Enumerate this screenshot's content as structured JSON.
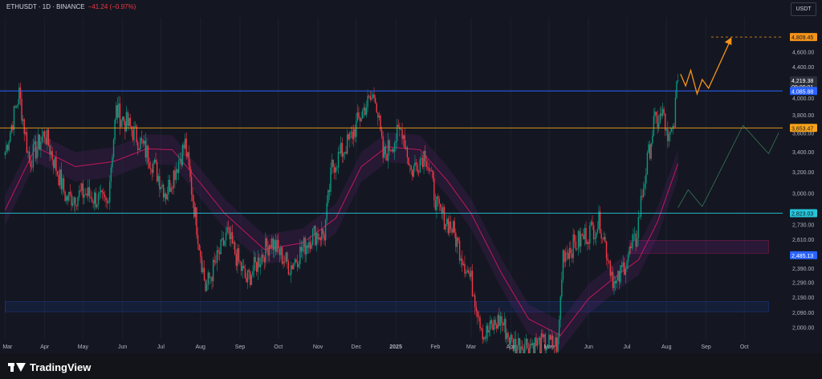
{
  "header": {
    "symbol_line": "ETHUSDT · 1D · BINANCE",
    "change": "−41.24 (−0.97%)",
    "currency_button": "USDT"
  },
  "footer": {
    "brand": "TradingView"
  },
  "colors": {
    "background": "#141721",
    "up": "#089981",
    "down": "#f23645",
    "ema": "#c2185b",
    "resistance_blue": "#2962ff",
    "support_orange": "#f7a21b",
    "cyan_line": "#26c6da",
    "projection_orange": "#f7931a",
    "axis_text": "#b2b5be"
  },
  "chart_data": {
    "type": "candlestick",
    "symbol": "ETHUSDT",
    "timeframe": "1D",
    "exchange": "BINANCE",
    "y_scale": "log",
    "ylim": [
      1930,
      5100
    ],
    "y_ticks": [
      "4,600.00",
      "4,400.00",
      "4,000.00",
      "3,800.00",
      "3,600.00",
      "3,400.00",
      "3,200.00",
      "3,000.00",
      "2,730.00",
      "2,610.00",
      "2,390.00",
      "2,290.00",
      "2,190.00",
      "2,090.00",
      "2,000.00"
    ],
    "x_labels": [
      "Mar",
      "Apr",
      "May",
      "Jun",
      "Jul",
      "Aug",
      "Sep",
      "Oct",
      "Nov",
      "Dec",
      "2025",
      "Feb",
      "Mar",
      "Apr",
      "May",
      "Jun",
      "Jul",
      "Aug",
      "Sep",
      "Oct"
    ],
    "price_path": [
      {
        "date": "2024-03-01",
        "close": 3400
      },
      {
        "date": "2024-03-12",
        "close": 4050
      },
      {
        "date": "2024-03-20",
        "close": 3300
      },
      {
        "date": "2024-04-01",
        "close": 3600
      },
      {
        "date": "2024-04-18",
        "close": 2950
      },
      {
        "date": "2024-05-02",
        "close": 3000
      },
      {
        "date": "2024-05-20",
        "close": 2900
      },
      {
        "date": "2024-05-27",
        "close": 3850
      },
      {
        "date": "2024-06-10",
        "close": 3600
      },
      {
        "date": "2024-06-24",
        "close": 3300
      },
      {
        "date": "2024-07-05",
        "close": 3000
      },
      {
        "date": "2024-07-20",
        "close": 3480
      },
      {
        "date": "2024-08-05",
        "close": 2250
      },
      {
        "date": "2024-08-22",
        "close": 2650
      },
      {
        "date": "2024-09-06",
        "close": 2300
      },
      {
        "date": "2024-09-25",
        "close": 2600
      },
      {
        "date": "2024-10-10",
        "close": 2400
      },
      {
        "date": "2024-10-28",
        "close": 2650
      },
      {
        "date": "2024-11-06",
        "close": 2650
      },
      {
        "date": "2024-11-12",
        "close": 3250
      },
      {
        "date": "2024-11-25",
        "close": 3500
      },
      {
        "date": "2024-12-08",
        "close": 3900
      },
      {
        "date": "2024-12-16",
        "close": 4050
      },
      {
        "date": "2024-12-22",
        "close": 3350
      },
      {
        "date": "2025-01-06",
        "close": 3650
      },
      {
        "date": "2025-01-13",
        "close": 3200
      },
      {
        "date": "2025-01-24",
        "close": 3400
      },
      {
        "date": "2025-02-03",
        "close": 2850
      },
      {
        "date": "2025-02-14",
        "close": 2700
      },
      {
        "date": "2025-03-01",
        "close": 2300
      },
      {
        "date": "2025-03-11",
        "close": 1950
      },
      {
        "date": "2025-03-24",
        "close": 2050
      },
      {
        "date": "2025-04-02",
        "close": 1900
      },
      {
        "date": "2025-05-08",
        "close": 1900
      },
      {
        "date": "2025-05-12",
        "close": 2500
      },
      {
        "date": "2025-05-25",
        "close": 2600
      },
      {
        "date": "2025-06-10",
        "close": 2750
      },
      {
        "date": "2025-06-22",
        "close": 2250
      },
      {
        "date": "2025-06-30",
        "close": 2450
      },
      {
        "date": "2025-07-08",
        "close": 2600
      },
      {
        "date": "2025-07-13",
        "close": 3000
      },
      {
        "date": "2025-07-22",
        "close": 3700
      },
      {
        "date": "2025-07-30",
        "close": 3800
      },
      {
        "date": "2025-08-02",
        "close": 3450
      },
      {
        "date": "2025-08-06",
        "close": 3650
      },
      {
        "date": "2025-08-10",
        "close": 4219.38
      }
    ],
    "ema_path": [
      {
        "date": "2024-03-01",
        "value": 2850
      },
      {
        "date": "2024-03-25",
        "value": 3450
      },
      {
        "date": "2024-04-25",
        "value": 3250
      },
      {
        "date": "2024-05-25",
        "value": 3300
      },
      {
        "date": "2024-06-20",
        "value": 3430
      },
      {
        "date": "2024-07-10",
        "value": 3420
      },
      {
        "date": "2024-07-28",
        "value": 3150
      },
      {
        "date": "2024-08-20",
        "value": 2820
      },
      {
        "date": "2024-09-20",
        "value": 2530
      },
      {
        "date": "2024-10-20",
        "value": 2580
      },
      {
        "date": "2024-11-15",
        "value": 2780
      },
      {
        "date": "2024-12-05",
        "value": 3250
      },
      {
        "date": "2024-12-25",
        "value": 3450
      },
      {
        "date": "2025-01-20",
        "value": 3420
      },
      {
        "date": "2025-02-10",
        "value": 3120
      },
      {
        "date": "2025-03-01",
        "value": 2820
      },
      {
        "date": "2025-03-25",
        "value": 2350
      },
      {
        "date": "2025-04-15",
        "value": 2050
      },
      {
        "date": "2025-05-10",
        "value": 1950
      },
      {
        "date": "2025-06-01",
        "value": 2180
      },
      {
        "date": "2025-06-25",
        "value": 2350
      },
      {
        "date": "2025-07-10",
        "value": 2450
      },
      {
        "date": "2025-07-25",
        "value": 2750
      },
      {
        "date": "2025-08-10",
        "value": 3280
      }
    ],
    "horizontal_lines": [
      {
        "price": 4085.88,
        "label": "4,085.88",
        "color": "blue"
      },
      {
        "price": 3653.47,
        "label": "3,653.47",
        "color": "orange"
      },
      {
        "price": 2823.03,
        "label": "2,823.03",
        "color": "cyan"
      }
    ],
    "price_labels": [
      {
        "price": 4219.38,
        "label": "4,219.38",
        "countdown": "09:00:01"
      },
      {
        "price": 2485.13,
        "label": "2,485.13"
      },
      {
        "price": 4809.45,
        "label": "4,809.45"
      }
    ],
    "zones": [
      {
        "name": "supply",
        "from_date": "2025-07-03",
        "to_date": "2025-10-20",
        "low": 2500,
        "high": 2600
      },
      {
        "name": "demand",
        "from_date": "2024-03-01",
        "to_date": "2025-10-20",
        "low": 2095,
        "high": 2160
      }
    ],
    "target_line": {
      "price": 4809.45,
      "from_date": "2025-09-05"
    },
    "projection_orange": [
      {
        "date": "2025-08-12",
        "value": 4300
      },
      {
        "date": "2025-08-16",
        "value": 4150
      },
      {
        "date": "2025-08-20",
        "value": 4350
      },
      {
        "date": "2025-08-25",
        "value": 4050
      },
      {
        "date": "2025-08-29",
        "value": 4230
      },
      {
        "date": "2025-09-03",
        "value": 4120
      },
      {
        "date": "2025-09-20",
        "value": 4760
      }
    ],
    "projection_green": [
      {
        "date": "2025-08-10",
        "value": 2870
      },
      {
        "date": "2025-08-18",
        "value": 3030
      },
      {
        "date": "2025-08-29",
        "value": 2880
      },
      {
        "date": "2025-09-30",
        "value": 3680
      },
      {
        "date": "2025-10-20",
        "value": 3380
      },
      {
        "date": "2025-10-28",
        "value": 3600
      }
    ]
  }
}
